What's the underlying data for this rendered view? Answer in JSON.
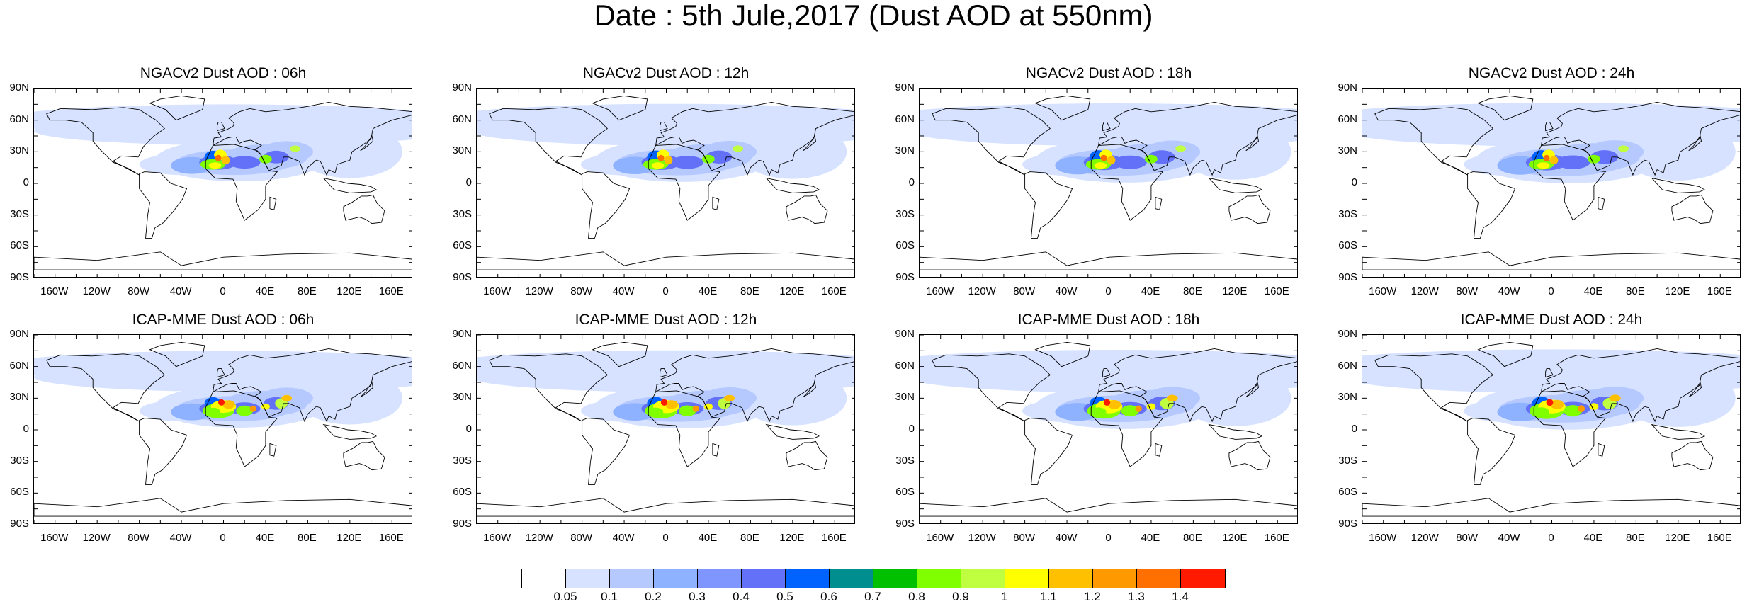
{
  "title": "Date : 5th Jule,2017 (Dust AOD at 550nm)",
  "lat_labels": [
    "90N",
    "60N",
    "30N",
    "0",
    "30S",
    "60S",
    "90S"
  ],
  "lon_labels": [
    "160W",
    "120W",
    "80W",
    "40W",
    "0",
    "40E",
    "80E",
    "120E",
    "160E"
  ],
  "panels": [
    {
      "title": "NGACv2 Dust AOD : 06h",
      "model": "NGACv2",
      "forecast_hour": "06h"
    },
    {
      "title": "NGACv2 Dust AOD : 12h",
      "model": "NGACv2",
      "forecast_hour": "12h"
    },
    {
      "title": "NGACv2 Dust AOD : 18h",
      "model": "NGACv2",
      "forecast_hour": "18h"
    },
    {
      "title": "NGACv2 Dust AOD : 24h",
      "model": "NGACv2",
      "forecast_hour": "24h"
    },
    {
      "title": "ICAP-MME Dust AOD : 06h",
      "model": "ICAP-MME",
      "forecast_hour": "06h"
    },
    {
      "title": "ICAP-MME Dust AOD : 12h",
      "model": "ICAP-MME",
      "forecast_hour": "12h"
    },
    {
      "title": "ICAP-MME Dust AOD : 18h",
      "model": "ICAP-MME",
      "forecast_hour": "18h"
    },
    {
      "title": "ICAP-MME Dust AOD : 24h",
      "model": "ICAP-MME",
      "forecast_hour": "24h"
    }
  ],
  "colorbar": {
    "labels": [
      "0.05",
      "0.1",
      "0.2",
      "0.3",
      "0.4",
      "0.5",
      "0.6",
      "0.7",
      "0.8",
      "0.9",
      "1",
      "1.1",
      "1.2",
      "1.3",
      "1.4"
    ],
    "colors": [
      "#ffffff",
      "#d6e2ff",
      "#b5c9ff",
      "#8eb2ff",
      "#7f96ff",
      "#6370f8",
      "#0062ff",
      "#008e8e",
      "#00c000",
      "#7fff00",
      "#c0ff40",
      "#ffff00",
      "#ffc000",
      "#ff9900",
      "#ff7000",
      "#ff1a00"
    ]
  }
}
